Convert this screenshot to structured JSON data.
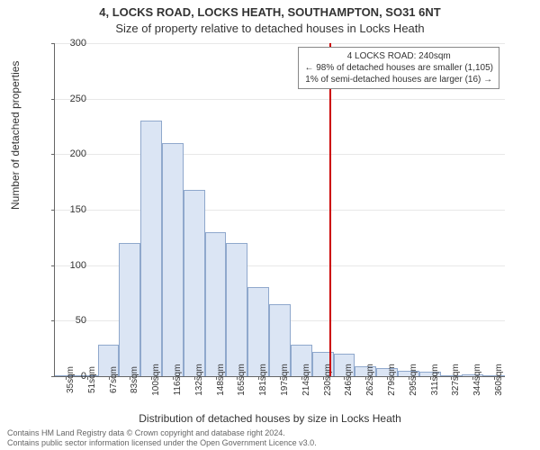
{
  "title_main": "4, LOCKS ROAD, LOCKS HEATH, SOUTHAMPTON, SO31 6NT",
  "title_sub": "Size of property relative to detached houses in Locks Heath",
  "ylabel": "Number of detached properties",
  "xlabel": "Distribution of detached houses by size in Locks Heath",
  "chart": {
    "type": "histogram",
    "ylim": [
      0,
      300
    ],
    "ytick_step": 50,
    "background_color": "#ffffff",
    "grid_color": "#999999",
    "grid_opacity": 0.15,
    "bar_fill": "#dbe5f4",
    "bar_stroke": "#8fa8cc",
    "bar_width_ratio": 1.0,
    "categories": [
      "35sqm",
      "51sqm",
      "67sqm",
      "83sqm",
      "100sqm",
      "116sqm",
      "132sqm",
      "148sqm",
      "165sqm",
      "181sqm",
      "197sqm",
      "214sqm",
      "230sqm",
      "246sqm",
      "262sqm",
      "279sqm",
      "295sqm",
      "311sqm",
      "327sqm",
      "344sqm",
      "360sqm"
    ],
    "values": [
      0,
      0,
      28,
      120,
      230,
      210,
      168,
      130,
      120,
      80,
      65,
      28,
      22,
      20,
      9,
      7,
      5,
      4,
      0,
      2,
      0
    ],
    "label_fontsize": 10,
    "axis_fontsize": 12,
    "ref_line": {
      "position_index": 12.8,
      "color": "#cc0000",
      "width": 2
    },
    "annotation": {
      "line1": "4 LOCKS ROAD: 240sqm",
      "line2": "← 98% of detached houses are smaller (1,105)",
      "line3": "1% of semi-detached houses are larger (16) →",
      "border_color": "#888888",
      "bg_color": "#ffffff",
      "fontsize": 10
    }
  },
  "footer": {
    "line1": "Contains HM Land Registry data © Crown copyright and database right 2024.",
    "line2": "Contains public sector information licensed under the Open Government Licence v3.0."
  }
}
